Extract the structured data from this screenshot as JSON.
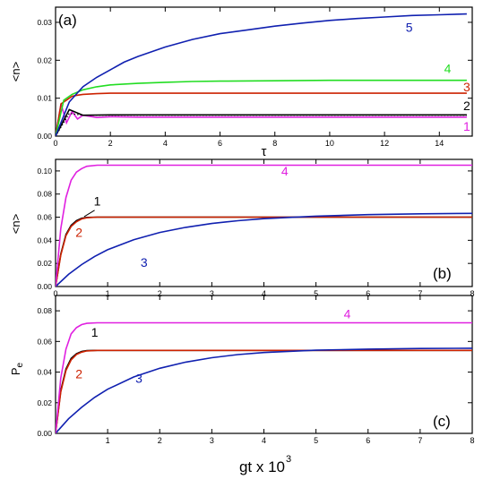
{
  "figure": {
    "shared_xlabel_main": "gt x 10",
    "shared_xlabel_exp": "3"
  },
  "chart_data": [
    {
      "type": "line",
      "panel_label": "(a)",
      "xlabel": "τ",
      "ylabel": "<n>",
      "xlim": [
        0,
        15.2
      ],
      "ylim": [
        0,
        0.034
      ],
      "xticks": [
        0,
        2,
        4,
        6,
        8,
        10,
        12,
        14
      ],
      "yticks": [
        0.0,
        0.01,
        0.02,
        0.03
      ],
      "ytick_labels": [
        "0.00",
        "0.01",
        "0.02",
        "0.03"
      ],
      "series": [
        {
          "name": "1",
          "color": "#e020e0",
          "style": "solid",
          "x": [
            0,
            0.2,
            0.4,
            0.6,
            0.8,
            1.0,
            1.5,
            2,
            3,
            4,
            6,
            8,
            10,
            12,
            14,
            15
          ],
          "y": [
            0,
            0.0085,
            0.0035,
            0.0065,
            0.0045,
            0.0055,
            0.0049,
            0.0051,
            0.005,
            0.005,
            0.005,
            0.005,
            0.005,
            0.005,
            0.005,
            0.005
          ]
        },
        {
          "name": "2",
          "color": "#000000",
          "style": "solid",
          "x": [
            0,
            0.5,
            1,
            2,
            3,
            4,
            6,
            8,
            10,
            12,
            14,
            15
          ],
          "y": [
            0,
            0.007,
            0.0055,
            0.0056,
            0.0056,
            0.0056,
            0.0056,
            0.0056,
            0.0056,
            0.0056,
            0.0056,
            0.0056
          ]
        },
        {
          "name": "2-dotted",
          "color": "#000000",
          "style": "dotted",
          "x": [
            0,
            0.5,
            1,
            2,
            3,
            4,
            6,
            8,
            10,
            12,
            14,
            15
          ],
          "y": [
            0,
            0.006,
            0.0055,
            0.0055,
            0.0055,
            0.0055,
            0.0055,
            0.0055,
            0.0055,
            0.0055,
            0.0055,
            0.0055
          ]
        },
        {
          "name": "3",
          "color": "#cc2200",
          "style": "solid",
          "x": [
            0,
            0.2,
            0.4,
            0.6,
            0.8,
            1.0,
            1.5,
            2,
            3,
            4,
            6,
            8,
            10,
            12,
            14,
            15
          ],
          "y": [
            0,
            0.0085,
            0.0095,
            0.0105,
            0.0108,
            0.011,
            0.0112,
            0.0113,
            0.0113,
            0.0113,
            0.0113,
            0.0113,
            0.0113,
            0.0113,
            0.0113,
            0.0113
          ]
        },
        {
          "name": "4",
          "color": "#22dd22",
          "style": "solid",
          "x": [
            0,
            0.3,
            0.6,
            1,
            1.5,
            2,
            3,
            4,
            5,
            6,
            8,
            10,
            12,
            14,
            15
          ],
          "y": [
            0,
            0.0095,
            0.011,
            0.0122,
            0.013,
            0.0135,
            0.0139,
            0.0142,
            0.0144,
            0.0145,
            0.0146,
            0.0147,
            0.0147,
            0.0147,
            0.0147
          ]
        },
        {
          "name": "5",
          "color": "#1020b0",
          "style": "solid",
          "x": [
            0,
            0.5,
            1,
            1.5,
            2,
            2.5,
            3,
            4,
            5,
            6,
            7,
            8,
            9,
            10,
            11,
            12,
            13,
            14,
            15
          ],
          "y": [
            0,
            0.009,
            0.013,
            0.0155,
            0.0175,
            0.0195,
            0.021,
            0.0235,
            0.0255,
            0.027,
            0.028,
            0.029,
            0.0298,
            0.0305,
            0.031,
            0.0314,
            0.0318,
            0.032,
            0.0322
          ]
        }
      ],
      "curve_labels": [
        {
          "text": "5",
          "color": "#1020b0",
          "x": 12.9,
          "y": 0.0275
        },
        {
          "text": "4",
          "color": "#22dd22",
          "x": 14.3,
          "y": 0.0167
        },
        {
          "text": "3",
          "color": "#cc2200",
          "x": 15.0,
          "y": 0.0118
        },
        {
          "text": "2",
          "color": "#000000",
          "x": 15.0,
          "y": 0.0069
        },
        {
          "text": "1",
          "color": "#e020e0",
          "x": 15.0,
          "y": 0.0014
        }
      ]
    },
    {
      "type": "line",
      "panel_label": "(b)",
      "xlabel": "",
      "ylabel": "<n>",
      "xlim": [
        0,
        8
      ],
      "ylim": [
        0,
        0.11
      ],
      "xticks": [
        0,
        1,
        2,
        3,
        4,
        5,
        6,
        7,
        8
      ],
      "yticks": [
        0.0,
        0.02,
        0.04,
        0.06,
        0.08,
        0.1
      ],
      "ytick_labels": [
        "0.00",
        "0.02",
        "0.04",
        "0.06",
        "0.08",
        "0.10"
      ],
      "series": [
        {
          "name": "1",
          "color": "#000000",
          "style": "solid",
          "x": [
            0,
            0.1,
            0.2,
            0.3,
            0.4,
            0.5,
            0.6,
            0.8,
            1,
            2,
            4,
            6,
            8
          ],
          "y": [
            0,
            0.028,
            0.045,
            0.053,
            0.057,
            0.059,
            0.0598,
            0.06,
            0.06,
            0.06,
            0.06,
            0.06,
            0.06
          ]
        },
        {
          "name": "2",
          "color": "#cc2200",
          "style": "solid",
          "x": [
            0,
            0.1,
            0.2,
            0.3,
            0.4,
            0.5,
            0.6,
            0.8,
            1,
            2,
            4,
            6,
            8
          ],
          "y": [
            0,
            0.027,
            0.044,
            0.052,
            0.056,
            0.0585,
            0.0595,
            0.06,
            0.06,
            0.06,
            0.06,
            0.06,
            0.06
          ]
        },
        {
          "name": "3",
          "color": "#1020b0",
          "style": "solid",
          "x": [
            0,
            0.25,
            0.5,
            0.75,
            1,
            1.5,
            2,
            2.5,
            3,
            3.5,
            4,
            5,
            6,
            7,
            8
          ],
          "y": [
            0,
            0.0105,
            0.019,
            0.026,
            0.0318,
            0.0405,
            0.0468,
            0.0512,
            0.0545,
            0.0569,
            0.0587,
            0.0609,
            0.0622,
            0.0629,
            0.0633
          ]
        },
        {
          "name": "4",
          "color": "#e020e0",
          "style": "solid",
          "x": [
            0,
            0.1,
            0.2,
            0.3,
            0.4,
            0.5,
            0.6,
            0.8,
            1,
            2,
            4,
            6,
            8
          ],
          "y": [
            0,
            0.05,
            0.077,
            0.092,
            0.099,
            0.102,
            0.104,
            0.105,
            0.105,
            0.105,
            0.105,
            0.105,
            0.105
          ]
        }
      ],
      "curve_labels": [
        {
          "text": "4",
          "color": "#e020e0",
          "x": 4.4,
          "y": 0.096
        },
        {
          "text": "1",
          "color": "#000000",
          "x": 0.8,
          "y": 0.07
        },
        {
          "text": "2",
          "color": "#cc2200",
          "x": 0.45,
          "y": 0.043
        },
        {
          "text": "3",
          "color": "#1020b0",
          "x": 1.7,
          "y": 0.017
        }
      ]
    },
    {
      "type": "line",
      "panel_label": "(c)",
      "xlabel": "gt x 10^3",
      "ylabel": "Pe",
      "xlim": [
        0,
        8
      ],
      "ylim": [
        0,
        0.09
      ],
      "xticks": [
        1,
        2,
        3,
        4,
        5,
        6,
        7,
        8
      ],
      "yticks": [
        0.0,
        0.02,
        0.04,
        0.06,
        0.08
      ],
      "ytick_labels": [
        "0.00",
        "0.02",
        "0.04",
        "0.06",
        "0.08"
      ],
      "series": [
        {
          "name": "1",
          "color": "#000000",
          "style": "solid",
          "x": [
            0,
            0.1,
            0.2,
            0.3,
            0.4,
            0.5,
            0.6,
            0.8,
            1,
            2,
            4,
            6,
            8
          ],
          "y": [
            0,
            0.028,
            0.042,
            0.049,
            0.052,
            0.0535,
            0.054,
            0.0542,
            0.0542,
            0.0542,
            0.0542,
            0.0542,
            0.0542
          ]
        },
        {
          "name": "2",
          "color": "#cc2200",
          "style": "solid",
          "x": [
            0,
            0.1,
            0.2,
            0.3,
            0.4,
            0.5,
            0.6,
            0.8,
            1,
            2,
            4,
            6,
            8
          ],
          "y": [
            0,
            0.027,
            0.041,
            0.048,
            0.0515,
            0.053,
            0.0538,
            0.0542,
            0.0542,
            0.0542,
            0.0542,
            0.0542,
            0.0542
          ]
        },
        {
          "name": "3",
          "color": "#1020b0",
          "style": "solid",
          "x": [
            0,
            0.25,
            0.5,
            0.75,
            1,
            1.5,
            2,
            2.5,
            3,
            3.5,
            4,
            5,
            6,
            7,
            8
          ],
          "y": [
            0,
            0.0095,
            0.017,
            0.0235,
            0.0288,
            0.0368,
            0.0425,
            0.0465,
            0.0494,
            0.0514,
            0.0528,
            0.0543,
            0.055,
            0.0554,
            0.0556
          ]
        },
        {
          "name": "4",
          "color": "#e020e0",
          "style": "solid",
          "x": [
            0,
            0.1,
            0.2,
            0.3,
            0.4,
            0.5,
            0.6,
            0.8,
            1,
            2,
            4,
            6,
            8
          ],
          "y": [
            0,
            0.036,
            0.055,
            0.065,
            0.069,
            0.071,
            0.0718,
            0.0722,
            0.0722,
            0.0722,
            0.0722,
            0.0722,
            0.0722
          ]
        }
      ],
      "curve_labels": [
        {
          "text": "4",
          "color": "#e020e0",
          "x": 5.6,
          "y": 0.075
        },
        {
          "text": "1",
          "color": "#000000",
          "x": 0.75,
          "y": 0.063
        },
        {
          "text": "2",
          "color": "#cc2200",
          "x": 0.45,
          "y": 0.036
        },
        {
          "text": "3",
          "color": "#1020b0",
          "x": 1.6,
          "y": 0.033
        }
      ]
    }
  ]
}
